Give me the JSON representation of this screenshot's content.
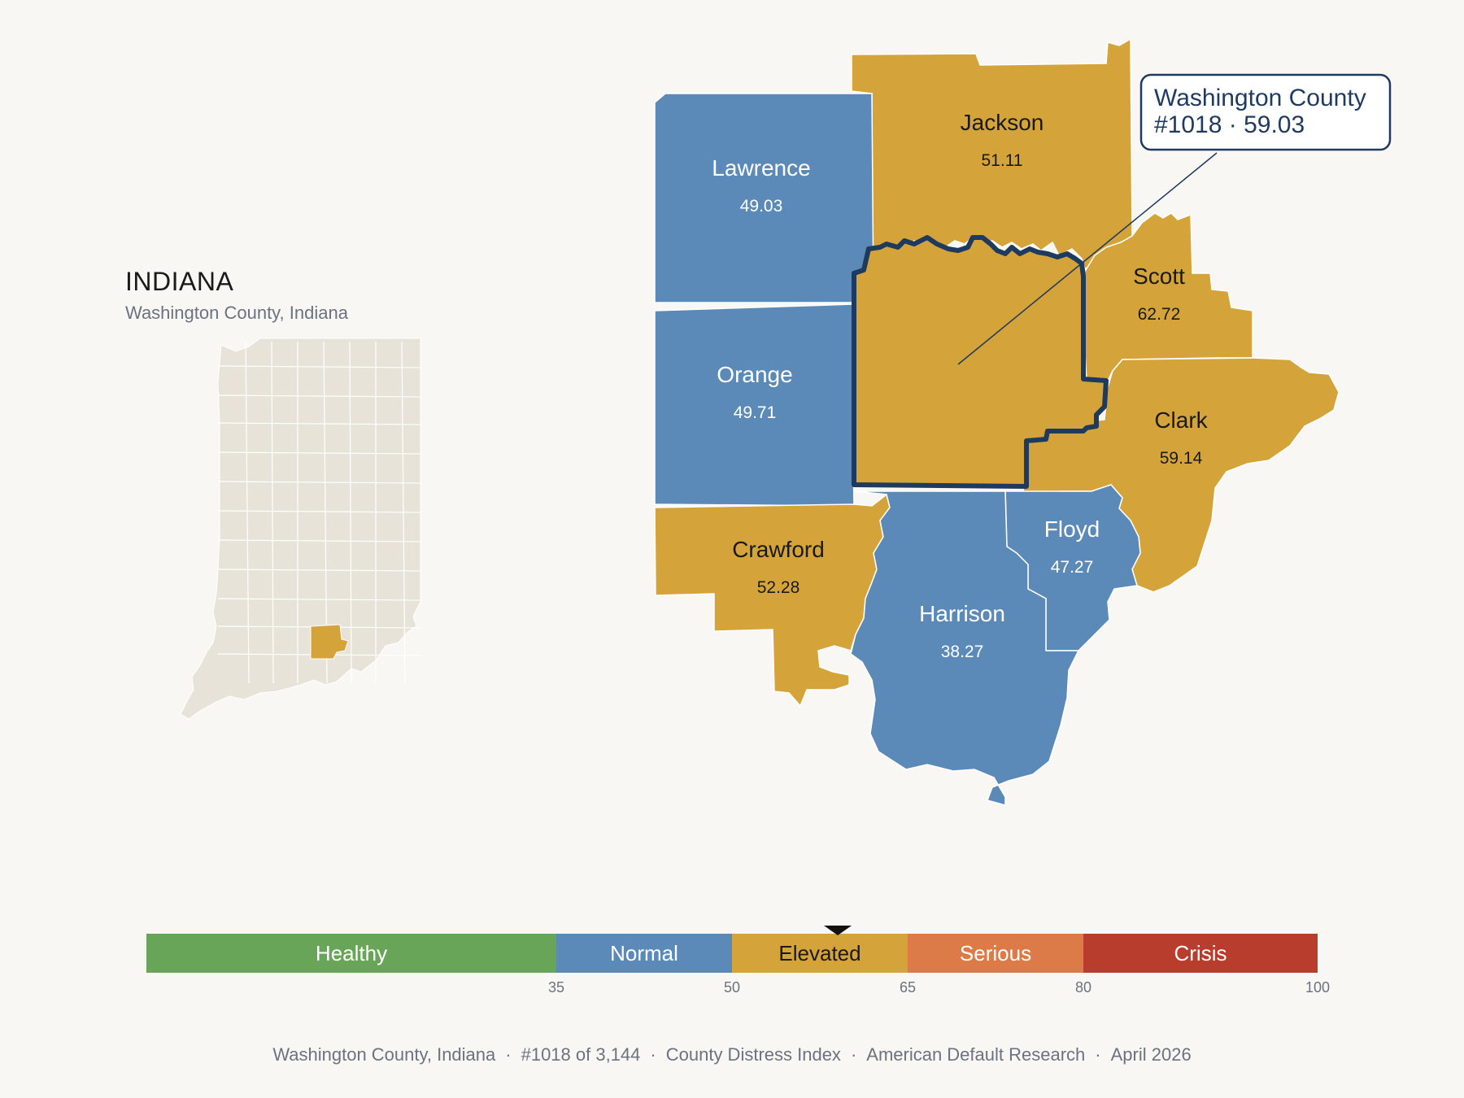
{
  "inset": {
    "title": "INDIANA",
    "subtitle": "Washington County, Indiana"
  },
  "counties": [
    {
      "id": "jackson",
      "name": "Jackson",
      "value": "51.11",
      "category": "Elevated"
    },
    {
      "id": "lawrence",
      "name": "Lawrence",
      "value": "49.03",
      "category": "Normal"
    },
    {
      "id": "scott",
      "name": "Scott",
      "value": "62.72",
      "category": "Elevated"
    },
    {
      "id": "orange",
      "name": "Orange",
      "value": "49.71",
      "category": "Normal"
    },
    {
      "id": "clark",
      "name": "Clark",
      "value": "59.14",
      "category": "Elevated"
    },
    {
      "id": "crawford",
      "name": "Crawford",
      "value": "52.28",
      "category": "Elevated"
    },
    {
      "id": "floyd",
      "name": "Floyd",
      "value": "47.27",
      "category": "Normal"
    },
    {
      "id": "harrison",
      "name": "Harrison",
      "value": "38.27",
      "category": "Normal"
    }
  ],
  "focus": {
    "name": "Washington County",
    "rank_value": "#1018 · 59.03",
    "value": 59.03,
    "category": "Elevated"
  },
  "scale": {
    "min": 0,
    "max": 100,
    "segments": [
      {
        "label": "Healthy",
        "from": 0,
        "to": 35,
        "color": "#68a558"
      },
      {
        "label": "Normal",
        "from": 35,
        "to": 50,
        "color": "#5b89b8"
      },
      {
        "label": "Elevated",
        "from": 50,
        "to": 65,
        "color": "#d4a43a"
      },
      {
        "label": "Serious",
        "from": 65,
        "to": 80,
        "color": "#dc7a48"
      },
      {
        "label": "Crisis",
        "from": 80,
        "to": 100,
        "color": "#b83d2d"
      }
    ],
    "ticks": [
      "35",
      "50",
      "65",
      "80",
      "100"
    ]
  },
  "colors": {
    "elevated": "#d4a43a",
    "normal": "#5b89b8",
    "inset_fill": "#e8e3d9",
    "focus_outline": "#1e3a5f",
    "background": "#f9f7f3"
  },
  "footer": [
    "Washington County, Indiana",
    "#1018 of 3,144",
    "County Distress Index",
    "American Default Research",
    "April 2026"
  ]
}
